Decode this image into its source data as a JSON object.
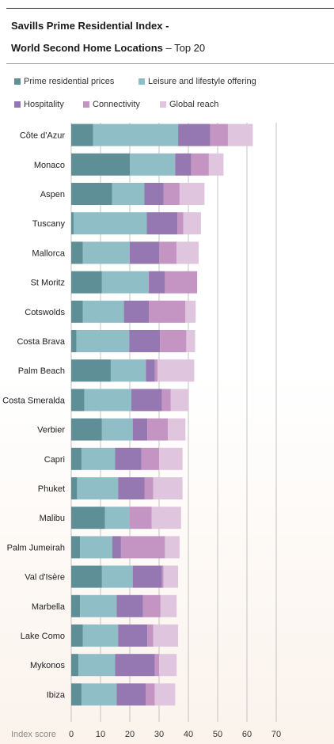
{
  "header": {
    "title_line1": "Savills Prime Residential Index -",
    "title_line2_bold": "World Second Home Locations",
    "title_line2_rest": " – Top 20"
  },
  "chart_data": {
    "type": "bar",
    "orientation": "horizontal",
    "stacked": true,
    "xlabel": "Index score",
    "xlim": [
      0,
      70
    ],
    "xticks": [
      0,
      10,
      20,
      30,
      40,
      50,
      60,
      70
    ],
    "grid": true,
    "legend_position": "top",
    "categories": [
      "Côte d'Azur",
      "Monaco",
      "Aspen",
      "Tuscany",
      "Mallorca",
      "St Moritz",
      "Cotswolds",
      "Costa Brava",
      "Palm Beach",
      "Costa Smeralda",
      "Verbier",
      "Capri",
      "Phuket",
      "Malibu",
      "Palm Jumeirah",
      "Val d'Isère",
      "Marbella",
      "Lake Como",
      "Mykonos",
      "Ibiza"
    ],
    "series": [
      {
        "name": "Prime residential prices",
        "color": "#5e8f96",
        "values": [
          7.5,
          20,
          14,
          0.8,
          4,
          10.5,
          4,
          1.8,
          13.5,
          4.5,
          10.5,
          3.5,
          2,
          11.5,
          3,
          10.5,
          3,
          4,
          2.5,
          3.5
        ]
      },
      {
        "name": "Leisure and lifestyle offering",
        "color": "#90bec6",
        "values": [
          29,
          15.5,
          11,
          25,
          16,
          16,
          14,
          18,
          12,
          16,
          10.5,
          11.5,
          14,
          8.5,
          11,
          10.5,
          12.5,
          12,
          12.5,
          12
        ]
      },
      {
        "name": "Hospitality",
        "color": "#9577b1",
        "values": [
          11,
          5.5,
          6.5,
          10.5,
          10,
          5.5,
          8.5,
          10.5,
          3,
          10.5,
          5,
          9,
          9,
          0,
          3,
          10,
          9,
          10,
          13.5,
          10
        ]
      },
      {
        "name": "Connectivity",
        "color": "#c494c2",
        "values": [
          6,
          6,
          5.5,
          2,
          6,
          11,
          12.5,
          9,
          1,
          3,
          7,
          6,
          3,
          7.5,
          15,
          0.5,
          6,
          2,
          1.5,
          3
        ]
      },
      {
        "name": "Global reach",
        "color": "#dfc5dd",
        "values": [
          8.5,
          5,
          8.5,
          6,
          7.5,
          0,
          3.5,
          3,
          12.5,
          6,
          6,
          8,
          10,
          10,
          5,
          5,
          5.5,
          8.5,
          6,
          7
        ]
      }
    ]
  }
}
